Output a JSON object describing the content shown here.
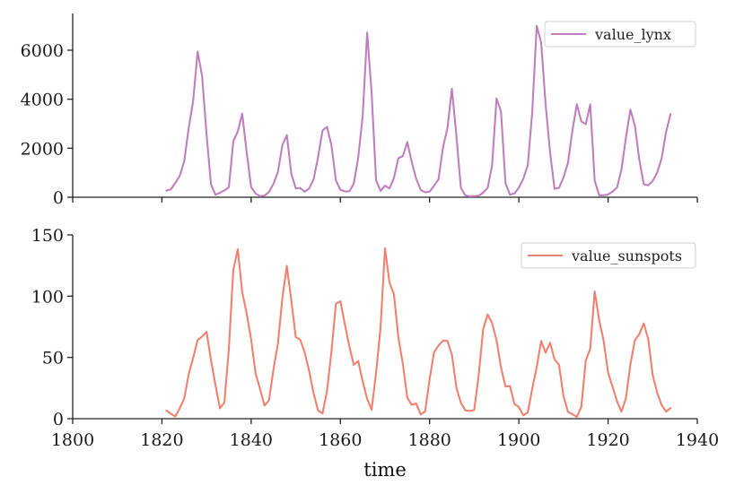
{
  "chart_data": [
    {
      "type": "line",
      "xlabel": "",
      "ylabel": "",
      "xlim": [
        1800,
        1940
      ],
      "ylim": [
        0,
        7500
      ],
      "yticks": [
        0,
        2000,
        4000,
        6000
      ],
      "xticks": [
        1800,
        1820,
        1840,
        1860,
        1880,
        1900,
        1920,
        1940
      ],
      "xtick_labels_visible": false,
      "legend_position": "top-right",
      "grid": false,
      "series": [
        {
          "name": "value_lynx",
          "color": "#bf7fbf",
          "x": [
            1821,
            1822,
            1823,
            1824,
            1825,
            1826,
            1827,
            1828,
            1829,
            1830,
            1831,
            1832,
            1833,
            1834,
            1835,
            1836,
            1837,
            1838,
            1839,
            1840,
            1841,
            1842,
            1843,
            1844,
            1845,
            1846,
            1847,
            1848,
            1849,
            1850,
            1851,
            1852,
            1853,
            1854,
            1855,
            1856,
            1857,
            1858,
            1859,
            1860,
            1861,
            1862,
            1863,
            1864,
            1865,
            1866,
            1867,
            1868,
            1869,
            1870,
            1871,
            1872,
            1873,
            1874,
            1875,
            1876,
            1877,
            1878,
            1879,
            1880,
            1881,
            1882,
            1883,
            1884,
            1885,
            1886,
            1887,
            1888,
            1889,
            1890,
            1891,
            1892,
            1893,
            1894,
            1895,
            1896,
            1897,
            1898,
            1899,
            1900,
            1901,
            1902,
            1903,
            1904,
            1905,
            1906,
            1907,
            1908,
            1909,
            1910,
            1911,
            1912,
            1913,
            1914,
            1915,
            1916,
            1917,
            1918,
            1919,
            1920,
            1921,
            1922,
            1923,
            1924,
            1925,
            1926,
            1927,
            1928,
            1929,
            1930,
            1931,
            1932,
            1933,
            1934
          ],
          "values": [
            269,
            321,
            585,
            871,
            1475,
            2821,
            3928,
            5943,
            4950,
            2577,
            523,
            98,
            184,
            279,
            409,
            2285,
            2685,
            3409,
            1824,
            409,
            151,
            45,
            68,
            213,
            546,
            1033,
            2129,
            2536,
            957,
            361,
            377,
            225,
            360,
            731,
            1638,
            2725,
            2871,
            2119,
            684,
            299,
            236,
            245,
            552,
            1623,
            3311,
            6721,
            4254,
            687,
            255,
            473,
            358,
            784,
            1594,
            1676,
            2251,
            1426,
            756,
            299,
            201,
            229,
            469,
            736,
            2042,
            2811,
            4431,
            2511,
            389,
            73,
            39,
            49,
            59,
            188,
            377,
            1292,
            4031,
            3495,
            587,
            105,
            153,
            387,
            758,
            1307,
            3465,
            6991,
            6313,
            3794,
            1836,
            345,
            382,
            808,
            1388,
            2713,
            3800,
            3091,
            2985,
            3790,
            674,
            81,
            80,
            108,
            229,
            399,
            1132,
            2432,
            3574,
            2935,
            1537,
            529,
            485,
            662,
            1000,
            1590,
            2657,
            3396
          ]
        }
      ]
    },
    {
      "type": "line",
      "xlabel": "time",
      "ylabel": "",
      "xlim": [
        1800,
        1940
      ],
      "ylim": [
        0,
        150
      ],
      "yticks": [
        0,
        50,
        100,
        150
      ],
      "xticks": [
        1800,
        1820,
        1840,
        1860,
        1880,
        1900,
        1920,
        1940
      ],
      "xtick_labels": [
        "1800",
        "1820",
        "1840",
        "1860",
        "1880",
        "1900",
        "1920",
        "1940"
      ],
      "legend_position": "top-right",
      "grid": false,
      "series": [
        {
          "name": "value_sunspots",
          "color": "#f08070",
          "x": [
            1821,
            1822,
            1823,
            1824,
            1825,
            1826,
            1827,
            1828,
            1829,
            1830,
            1831,
            1832,
            1833,
            1834,
            1835,
            1836,
            1837,
            1838,
            1839,
            1840,
            1841,
            1842,
            1843,
            1844,
            1845,
            1846,
            1847,
            1848,
            1849,
            1850,
            1851,
            1852,
            1853,
            1854,
            1855,
            1856,
            1857,
            1858,
            1859,
            1860,
            1861,
            1862,
            1863,
            1864,
            1865,
            1866,
            1867,
            1868,
            1869,
            1870,
            1871,
            1872,
            1873,
            1874,
            1875,
            1876,
            1877,
            1878,
            1879,
            1880,
            1881,
            1882,
            1883,
            1884,
            1885,
            1886,
            1887,
            1888,
            1889,
            1890,
            1891,
            1892,
            1893,
            1894,
            1895,
            1896,
            1897,
            1898,
            1899,
            1900,
            1901,
            1902,
            1903,
            1904,
            1905,
            1906,
            1907,
            1908,
            1909,
            1910,
            1911,
            1912,
            1913,
            1914,
            1915,
            1916,
            1917,
            1918,
            1919,
            1920,
            1921,
            1922,
            1923,
            1924,
            1925,
            1926,
            1927,
            1928,
            1929,
            1930,
            1931,
            1932,
            1933,
            1934
          ],
          "values": [
            6.6,
            4,
            1.8,
            8.5,
            16.6,
            36.3,
            49.6,
            64.2,
            67,
            70.9,
            47.8,
            27.5,
            8.5,
            13.2,
            56.9,
            121.5,
            138.3,
            103.2,
            85.7,
            64.6,
            36.7,
            24.2,
            10.7,
            15,
            40.1,
            61.5,
            98.5,
            124.7,
            96.3,
            66.6,
            64.5,
            54.1,
            39,
            20.6,
            6.7,
            4.3,
            22.7,
            54.8,
            93.8,
            95.8,
            77.2,
            59.1,
            44,
            47,
            30.5,
            16.3,
            7.3,
            37.6,
            74,
            139,
            111.2,
            101.6,
            66.2,
            44.7,
            17,
            11.3,
            12.4,
            3.4,
            6,
            32.3,
            54.3,
            59.7,
            63.7,
            63.5,
            52.2,
            25.4,
            13.1,
            6.8,
            6.3,
            7.1,
            35.6,
            73,
            85.1,
            78,
            64,
            41.8,
            26.2,
            26.7,
            12.1,
            9.5,
            2.7,
            5,
            24.4,
            42,
            63.5,
            53.8,
            62,
            48.5,
            43.9,
            18.6,
            5.7,
            3.6,
            1.4,
            9.6,
            47.4,
            57.1,
            103.9,
            80.6,
            63.6,
            37.6,
            26.1,
            14.2,
            5.8,
            16.7,
            44.3,
            63.9,
            69,
            77.8,
            64.9,
            35.7,
            21.2,
            11.1,
            5.7,
            8.7
          ]
        }
      ]
    }
  ]
}
